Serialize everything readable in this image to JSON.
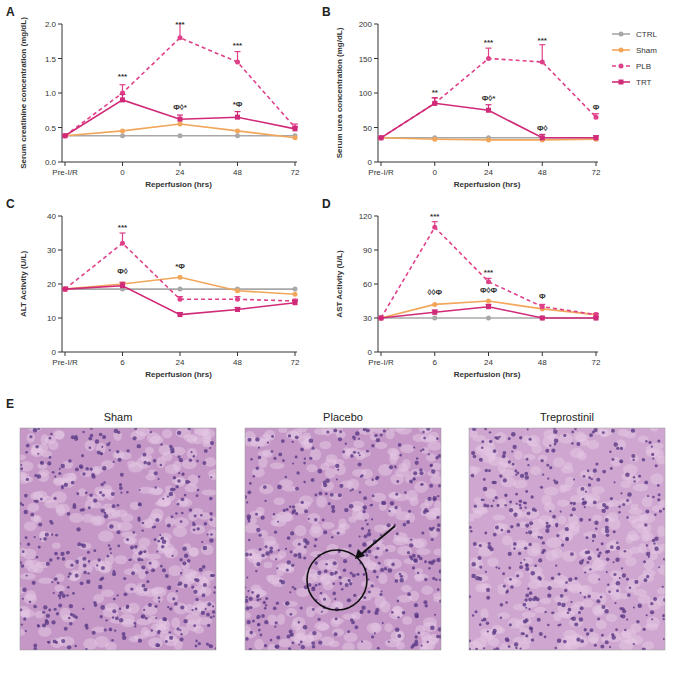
{
  "chart_data": [
    {
      "type": "line",
      "panel_label": "A",
      "x_label": "Reperfusion (hrs)",
      "y_label": "Serum creatinine concentration (mg/dL)",
      "categories": [
        "Pre-I/R",
        "0",
        "24",
        "48",
        "72"
      ],
      "ylim": [
        0,
        2
      ],
      "yticks": [
        {
          "value": 0,
          "label": "0.0"
        },
        0.5,
        {
          "value": 1,
          "label": "1.0"
        },
        1.5,
        {
          "value": 2,
          "label": "2.0"
        }
      ],
      "series": [
        {
          "name": "CTRL",
          "color": "#a8a8a8",
          "marker": "circle",
          "line_style": "solid",
          "values": [
            0.38,
            0.38,
            0.38,
            0.38,
            0.38
          ]
        },
        {
          "name": "Sham",
          "color": "#f2a65a",
          "marker": "circle",
          "line_style": "solid",
          "values": [
            0.38,
            0.45,
            0.55,
            0.45,
            0.35
          ]
        },
        {
          "name": "PLB",
          "color": "#e0408a",
          "marker": "circle",
          "line_style": "dashed",
          "values": [
            0.38,
            1.0,
            1.8,
            1.45,
            0.5
          ],
          "errors": [
            0,
            0.12,
            0.22,
            0.15,
            0.05
          ]
        },
        {
          "name": "TRT",
          "color": "#d02a78",
          "marker": "square",
          "line_style": "solid",
          "values": [
            0.38,
            0.9,
            0.62,
            0.65,
            0.48
          ],
          "errors": [
            0,
            0.08,
            0.06,
            0.08,
            0.03
          ]
        }
      ],
      "annotations": [
        {
          "text": "***",
          "index": 1,
          "y": 1.2
        },
        {
          "text": "***",
          "index": 2,
          "y": 1.95
        },
        {
          "text": "Φ◊*",
          "index": 2,
          "y": 0.75
        },
        {
          "text": "***",
          "index": 3,
          "y": 1.65
        },
        {
          "text": "*Φ",
          "index": 3,
          "y": 0.8
        }
      ]
    },
    {
      "type": "line",
      "panel_label": "B",
      "x_label": "Reperfusion (hrs)",
      "y_label": "Serum urea concentration (mg/dL)",
      "categories": [
        "Pre-I/R",
        "0",
        "24",
        "48",
        "72"
      ],
      "ylim": [
        0,
        200
      ],
      "yticks": [
        0,
        50,
        100,
        150,
        200
      ],
      "legend": "right",
      "series": [
        {
          "name": "CTRL",
          "color": "#a8a8a8",
          "marker": "circle",
          "line_style": "solid",
          "values": [
            35,
            35,
            35,
            35,
            35
          ]
        },
        {
          "name": "Sham",
          "color": "#f2a65a",
          "marker": "circle",
          "line_style": "solid",
          "values": [
            35,
            33,
            32,
            32,
            33
          ]
        },
        {
          "name": "PLB",
          "color": "#e0408a",
          "marker": "circle",
          "line_style": "dashed",
          "values": [
            35,
            85,
            150,
            145,
            65
          ],
          "errors": [
            0,
            8,
            15,
            25,
            5
          ]
        },
        {
          "name": "TRT",
          "color": "#d02a78",
          "marker": "square",
          "line_style": "solid",
          "values": [
            35,
            85,
            75,
            35,
            35
          ],
          "errors": [
            0,
            8,
            8,
            5,
            3
          ]
        }
      ],
      "annotations": [
        {
          "text": "**",
          "index": 1,
          "y": 97
        },
        {
          "text": "***",
          "index": 2,
          "y": 170
        },
        {
          "text": "***",
          "index": 3,
          "y": 172
        },
        {
          "text": "Φ◊*",
          "index": 2,
          "y": 88
        },
        {
          "text": "Φ◊",
          "index": 3,
          "y": 45
        },
        {
          "text": "Φ",
          "index": 4,
          "y": 75
        }
      ]
    },
    {
      "type": "line",
      "panel_label": "C",
      "x_label": "Reperfusion (hrs)",
      "y_label": "ALT Activity (U/L)",
      "categories": [
        "Pre-I/R",
        "6",
        "24",
        "48",
        "72"
      ],
      "ylim": [
        0,
        40
      ],
      "yticks": [
        0,
        10,
        20,
        30,
        40
      ],
      "series": [
        {
          "name": "CTRL",
          "color": "#a8a8a8",
          "marker": "circle",
          "line_style": "solid",
          "values": [
            18.5,
            18.5,
            18.5,
            18.5,
            18.5
          ]
        },
        {
          "name": "Sham",
          "color": "#f2a65a",
          "marker": "circle",
          "line_style": "solid",
          "values": [
            18.5,
            20,
            22,
            18,
            17
          ]
        },
        {
          "name": "PLB",
          "color": "#e0408a",
          "marker": "circle",
          "line_style": "dashed",
          "values": [
            18.5,
            32,
            15.5,
            15.5,
            15
          ],
          "errors": [
            0,
            3,
            0.8,
            0.8,
            0.5
          ]
        },
        {
          "name": "TRT",
          "color": "#d02a78",
          "marker": "square",
          "line_style": "solid",
          "values": [
            18.5,
            19.5,
            11,
            12.5,
            14.5
          ],
          "errors": [
            0,
            1,
            0.6,
            0.6,
            0.6
          ]
        }
      ],
      "annotations": [
        {
          "text": "***",
          "index": 1,
          "y": 36
        },
        {
          "text": "Φ◊",
          "index": 1,
          "y": 23
        },
        {
          "text": "*Φ",
          "index": 2,
          "y": 24.5
        }
      ]
    },
    {
      "type": "line",
      "panel_label": "D",
      "x_label": "Reperfusion (hrs)",
      "y_label": "AST Activity (U/L)",
      "categories": [
        "Pre-I/R",
        "6",
        "24",
        "48",
        "72"
      ],
      "ylim": [
        0,
        120
      ],
      "yticks": [
        0,
        30,
        60,
        90,
        120
      ],
      "series": [
        {
          "name": "CTRL",
          "color": "#a8a8a8",
          "marker": "circle",
          "line_style": "solid",
          "values": [
            30,
            30,
            30,
            30,
            30
          ]
        },
        {
          "name": "Sham",
          "color": "#f2a65a",
          "marker": "circle",
          "line_style": "solid",
          "values": [
            30,
            42,
            45,
            38,
            33
          ]
        },
        {
          "name": "PLB",
          "color": "#e0408a",
          "marker": "circle",
          "line_style": "dashed",
          "values": [
            30,
            110,
            62,
            40,
            33
          ],
          "errors": [
            0,
            5,
            3,
            2,
            1
          ]
        },
        {
          "name": "TRT",
          "color": "#d02a78",
          "marker": "square",
          "line_style": "solid",
          "values": [
            30,
            35,
            40,
            30,
            30
          ],
          "errors": [
            0,
            2,
            2,
            1,
            1
          ]
        }
      ],
      "annotations": [
        {
          "text": "***",
          "index": 1,
          "y": 117
        },
        {
          "text": "***",
          "index": 2,
          "y": 68
        },
        {
          "text": "◊◊Φ",
          "index": 1,
          "y": 50
        },
        {
          "text": "Φ◊Φ",
          "index": 2,
          "y": 52
        },
        {
          "text": "Φ",
          "index": 3,
          "y": 47
        }
      ]
    }
  ],
  "histology": {
    "panel_label": "E",
    "images": [
      {
        "title": "Sham"
      },
      {
        "title": "Placebo"
      },
      {
        "title": "Treprostinil"
      }
    ]
  }
}
